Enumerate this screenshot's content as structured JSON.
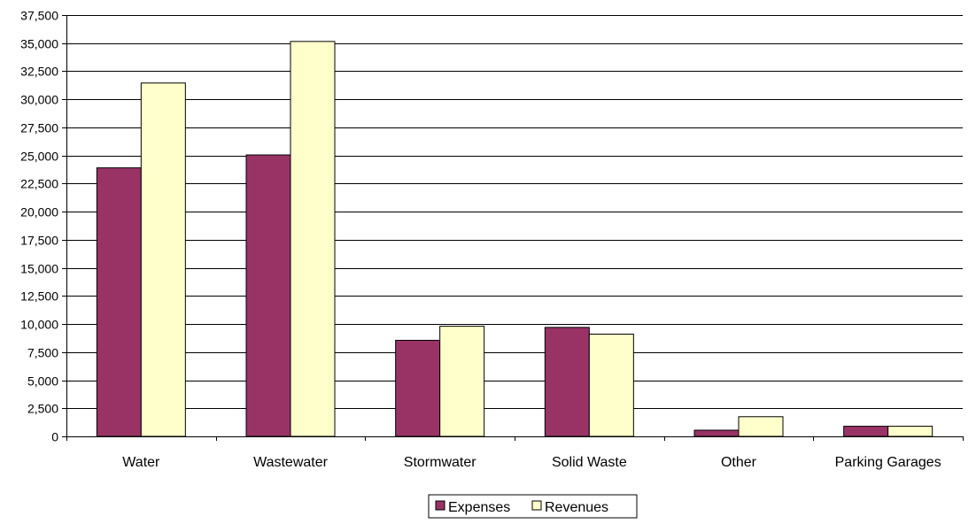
{
  "chart_data": {
    "type": "bar",
    "categories": [
      "Water",
      "Wastewater",
      "Stormwater",
      "Solid Waste",
      "Other",
      "Parking Garages"
    ],
    "series": [
      {
        "name": "Expenses",
        "color": "#993366",
        "values": [
          23900,
          25050,
          8550,
          9700,
          550,
          900
        ]
      },
      {
        "name": "Revenues",
        "color": "#ffffcc",
        "values": [
          31450,
          35150,
          9800,
          9100,
          1750,
          900
        ]
      }
    ],
    "ylim": [
      0,
      37500
    ],
    "yticks": [
      "0",
      "2,500",
      "5,000",
      "7,500",
      "10,000",
      "12,500",
      "15,000",
      "17,500",
      "20,000",
      "22,500",
      "25,000",
      "27,500",
      "30,000",
      "32,500",
      "35,000",
      "37,500"
    ],
    "grid": true,
    "legend_position": "bottom-center",
    "xlabel": "",
    "ylabel": "",
    "title": ""
  }
}
